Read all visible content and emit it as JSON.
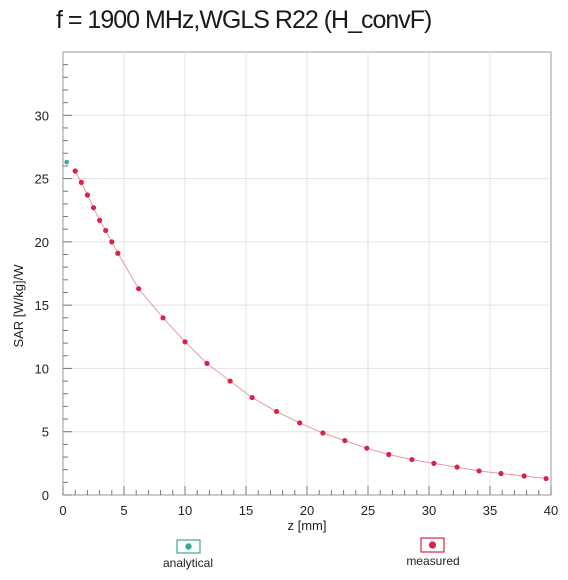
{
  "chart_data": {
    "type": "scatter",
    "title": "f = 1900 MHz,WGLS R22 (H_convF)",
    "xlabel": "z [mm]",
    "ylabel": "SAR [W/kg]/W",
    "xlim": [
      0,
      40
    ],
    "ylim": [
      0,
      35
    ],
    "x_ticks": [
      "0",
      "5",
      "10",
      "15",
      "20",
      "25",
      "30",
      "35",
      "40"
    ],
    "y_ticks": [
      "0",
      "5",
      "10",
      "15",
      "20",
      "25",
      "30"
    ],
    "grid": true,
    "legend_placement": "bottom",
    "colors": {
      "analytical": "#3fa796",
      "measured": "#d9224a",
      "curve": "#e79aa8",
      "grid": "#e3e3e3",
      "axis": "#777777"
    },
    "series": [
      {
        "name": "analytical",
        "x": [
          0.3
        ],
        "y": [
          26.3
        ]
      },
      {
        "name": "measured",
        "x": [
          1.0,
          1.5,
          2.0,
          2.5,
          3.0,
          3.5,
          4.0,
          4.5,
          6.2,
          8.2,
          10.0,
          11.8,
          13.7,
          15.5,
          17.5,
          19.4,
          21.3,
          23.1,
          24.9,
          26.7,
          28.6,
          30.4,
          32.3,
          34.1,
          35.9,
          37.8,
          39.6
        ],
        "y": [
          25.6,
          24.7,
          23.7,
          22.7,
          21.7,
          20.9,
          20.0,
          19.1,
          16.3,
          14.0,
          12.1,
          10.4,
          9.0,
          7.7,
          6.6,
          5.7,
          4.9,
          4.3,
          3.7,
          3.2,
          2.8,
          2.5,
          2.2,
          1.9,
          1.7,
          1.5,
          1.3
        ]
      }
    ]
  }
}
